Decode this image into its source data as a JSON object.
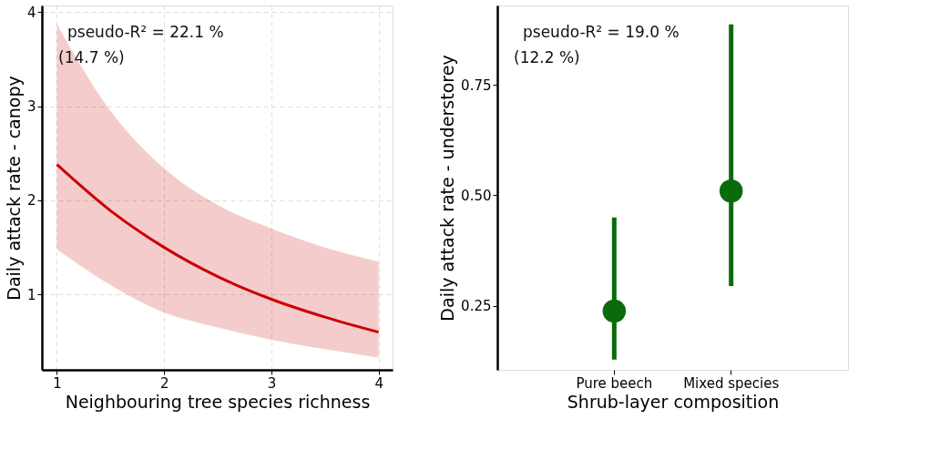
{
  "chart_data": [
    {
      "type": "line",
      "xlabel": "Neighbouring tree species richness",
      "ylabel": "Daily attack rate - canopy",
      "annotations": [
        "pseudo-R² = 22.1 %",
        "(14.7 %)"
      ],
      "series": [
        {
          "color": "#cc0000",
          "x": [
            1,
            1.5,
            2,
            2.5,
            3,
            3.5,
            4
          ],
          "values": [
            2.38,
            1.89,
            1.5,
            1.19,
            0.95,
            0.76,
            0.6
          ],
          "lower": [
            1.48,
            1.1,
            0.81,
            0.65,
            0.52,
            0.42,
            0.33
          ],
          "upper": [
            3.87,
            2.95,
            2.34,
            1.95,
            1.7,
            1.5,
            1.35
          ]
        }
      ],
      "xlim": [
        0.86,
        4.13
      ],
      "xticks": [
        1,
        2,
        3,
        4
      ],
      "ylim": [
        0.2,
        4.07
      ],
      "yticks": [
        1,
        2,
        3,
        4
      ],
      "grid": true,
      "line_style": "solid",
      "marker": "none"
    },
    {
      "type": "scatter",
      "xlabel": "Shrub-layer composition",
      "ylabel": "Daily attack rate - understorey",
      "annotations": [
        "pseudo-R² = 19.0 %",
        "(12.2 %)"
      ],
      "categories": [
        "Pure beech",
        "Mixed species"
      ],
      "series": [
        {
          "color": "#0b6b0b",
          "values": [
            0.238,
            0.51
          ],
          "errors": [
            [
              0.128,
              0.45
            ],
            [
              0.295,
              0.887
            ]
          ]
        }
      ],
      "ylim": [
        0.105,
        0.93
      ],
      "yticks": [
        {
          "value": 0.25,
          "label": "0.25"
        },
        {
          "value": 0.5,
          "label": "0.50"
        },
        {
          "value": 0.75,
          "label": "0.75"
        }
      ],
      "grid": false,
      "marker": "circle"
    }
  ]
}
